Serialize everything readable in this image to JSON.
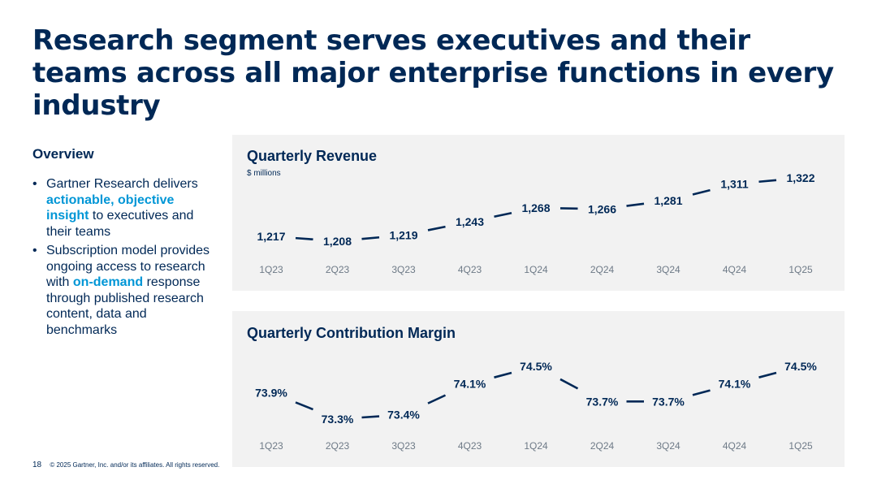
{
  "title": "Research segment serves executives and their teams across all major enterprise functions in every industry",
  "overview": {
    "heading": "Overview",
    "bullet_symbol": "•",
    "bullet1": {
      "pre": "Gartner Research delivers ",
      "highlight": "actionable, objective insight",
      "post": " to executives and their teams"
    },
    "bullet2": {
      "pre": "Subscription model provides ongoing access to research with ",
      "highlight": "on-demand",
      "post": " response through published research content, data and benchmarks"
    }
  },
  "chart_data": [
    {
      "type": "line",
      "title": "Quarterly Revenue",
      "subtitle": "$ millions",
      "categories": [
        "1Q23",
        "2Q23",
        "3Q23",
        "4Q23",
        "1Q24",
        "2Q24",
        "3Q24",
        "4Q24",
        "1Q25"
      ],
      "values": [
        1217,
        1208,
        1219,
        1243,
        1268,
        1266,
        1281,
        1311,
        1322
      ],
      "labels": [
        "1,217",
        "1,208",
        "1,219",
        "1,243",
        "1,268",
        "1,266",
        "1,281",
        "1,311",
        "1,322"
      ],
      "ylim": [
        1208,
        1322
      ],
      "unit": "$ millions"
    },
    {
      "type": "line",
      "title": "Quarterly Contribution Margin",
      "categories": [
        "1Q23",
        "2Q23",
        "3Q23",
        "4Q23",
        "1Q24",
        "2Q24",
        "3Q24",
        "4Q24",
        "1Q25"
      ],
      "values": [
        73.9,
        73.3,
        73.4,
        74.1,
        74.5,
        73.7,
        73.7,
        74.1,
        74.5
      ],
      "labels": [
        "73.9%",
        "73.3%",
        "73.4%",
        "74.1%",
        "74.5%",
        "73.7%",
        "73.7%",
        "74.1%",
        "74.5%"
      ],
      "ylim": [
        73.3,
        74.5
      ],
      "unit": "%"
    }
  ],
  "footer": {
    "page_number": "18",
    "copyright": "© 2025 Gartner, Inc. and/or its affiliates. All rights reserved."
  },
  "colors": {
    "navy": "#002856",
    "highlight": "#0096d6",
    "panel_bg": "#f2f2f2",
    "axis_label": "#6e7a87"
  }
}
